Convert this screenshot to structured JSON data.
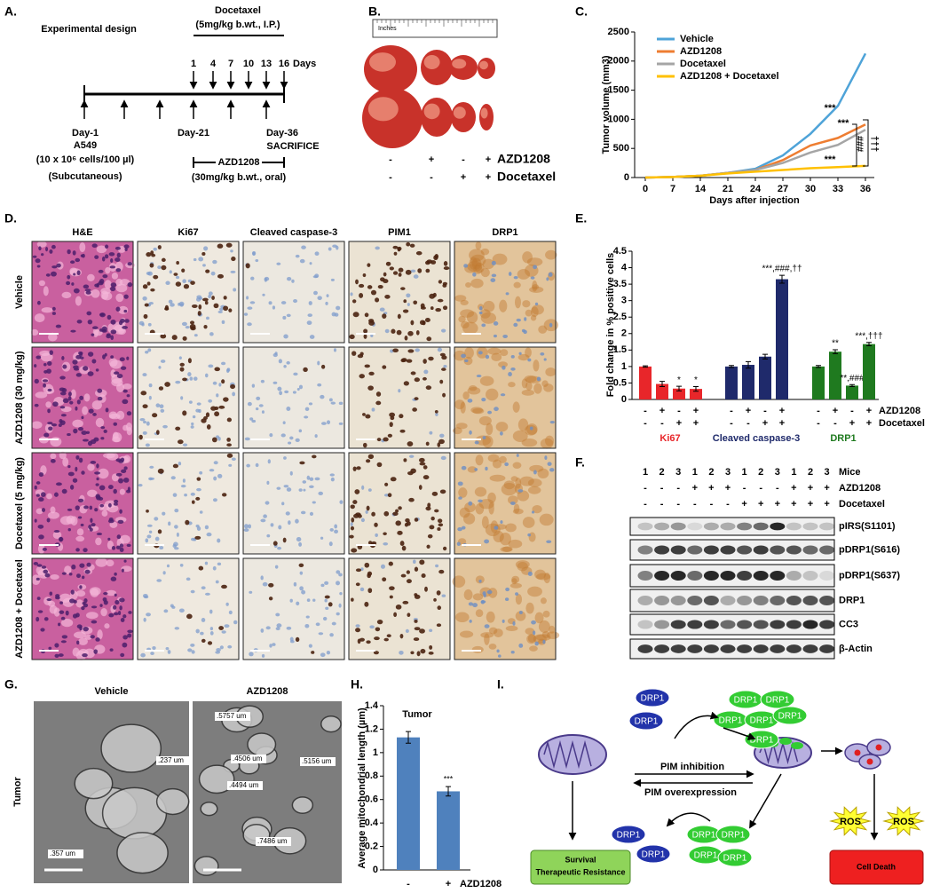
{
  "panel_labels": [
    "A.",
    "B.",
    "C.",
    "D.",
    "E.",
    "F.",
    "G.",
    "H.",
    "I."
  ],
  "design": {
    "title": "Experimental design",
    "drug": "Docetaxel",
    "drug_dose": "(5mg/kg b.wt., I.P.)",
    "days": [
      "1",
      "4",
      "7",
      "10",
      "13",
      "16"
    ],
    "days_unit": "Days",
    "day1": "Day-1",
    "cell_line": "A549",
    "cells": "(10 x 10⁶ cells/100 µl)",
    "route": "(Subcutaneous)",
    "day21": "Day-21",
    "day36": "Day-36",
    "sacrifice": "SACRIFICE",
    "inhibitor": "AZD1208",
    "inhibitor_dose": "(30mg/kg b.wt., oral)"
  },
  "tumors": {
    "ruler": "Inches",
    "azd_signs": [
      "-",
      "+",
      "-",
      "+"
    ],
    "doc_signs": [
      "-",
      "-",
      "+",
      "+"
    ],
    "azd_label": "AZD1208",
    "doc_label": "Docetaxel"
  },
  "chart_data": [
    {
      "type": "line",
      "xlabel": "Days after injection",
      "ylabel": "Tumor volume (mm3)",
      "categories": [
        "0",
        "7",
        "14",
        "21",
        "24",
        "27",
        "30",
        "33",
        "36"
      ],
      "ylim": [
        0,
        2500
      ],
      "yticks": [
        0,
        500,
        1000,
        1500,
        2000,
        2500
      ],
      "legend": "upper left",
      "series": [
        {
          "name": "Vehicle",
          "color": "#4ea3d8",
          "values": [
            0,
            10,
            30,
            80,
            150,
            380,
            750,
            1230,
            2130
          ]
        },
        {
          "name": "AZD1208",
          "color": "#ee7d31",
          "values": [
            0,
            10,
            30,
            80,
            130,
            300,
            550,
            680,
            910
          ]
        },
        {
          "name": "Docetaxel",
          "color": "#a5a5a5",
          "values": [
            0,
            10,
            30,
            80,
            130,
            250,
            430,
            560,
            820
          ]
        },
        {
          "name": "AZD1208 + Docetaxel",
          "color": "#ffc000",
          "values": [
            0,
            10,
            30,
            70,
            100,
            130,
            160,
            180,
            200
          ]
        }
      ],
      "annotations": [
        "***",
        "***",
        "***",
        "###",
        "†††"
      ]
    },
    {
      "type": "bar",
      "ylabel": "Fold change in % positive cells",
      "ylim": [
        0,
        4.5
      ],
      "yticks": [
        0,
        0.5,
        1,
        1.5,
        2,
        2.5,
        3,
        3.5,
        4,
        4.5
      ],
      "azd_signs": [
        "-",
        "+",
        "-",
        "+"
      ],
      "doc_signs": [
        "-",
        "-",
        "+",
        "+"
      ],
      "azd_label": "AZD1208",
      "doc_label": "Docetaxel",
      "groups": [
        {
          "name": "Ki67",
          "color": "#e8262a",
          "values": [
            1,
            0.47,
            0.33,
            0.32
          ],
          "errors": [
            0.02,
            0.08,
            0.07,
            0.07
          ],
          "annotations": [
            null,
            null,
            "*",
            "*"
          ]
        },
        {
          "name": "Cleaved caspase-3",
          "color": "#1f2a6b",
          "values": [
            1,
            1.05,
            1.3,
            3.65
          ],
          "errors": [
            0.03,
            0.1,
            0.07,
            0.12
          ],
          "annotations": [
            null,
            null,
            null,
            "***,###,††"
          ]
        },
        {
          "name": "DRP1",
          "color": "#1f7a1f",
          "values": [
            1,
            1.45,
            0.42,
            1.68
          ],
          "errors": [
            0.03,
            0.06,
            0.03,
            0.05
          ],
          "annotations": [
            null,
            "**",
            "**,###",
            "***,†††"
          ]
        }
      ]
    },
    {
      "type": "bar",
      "title": "Tumor",
      "ylabel": "Average mitochondrial length (µm)",
      "xlabel": "AZD1208",
      "categories": [
        "-",
        "+"
      ],
      "values": [
        1.13,
        0.67
      ],
      "errors": [
        0.05,
        0.04
      ],
      "annotations": [
        null,
        "***"
      ],
      "color": "#4f81bd",
      "ylim": [
        0,
        1.4
      ],
      "yticks": [
        0,
        0.2,
        0.4,
        0.6,
        0.8,
        1,
        1.2,
        1.4
      ]
    }
  ],
  "ihc": {
    "columns": [
      "H&E",
      "Ki67",
      "Cleaved caspase-3",
      "PIM1",
      "DRP1"
    ],
    "rows": [
      "Vehicle",
      "AZD1208 (30 mg/kg)",
      "Docetaxel (5 mg/kg)",
      "AZD1208 + Docetaxel"
    ]
  },
  "western": {
    "mice_label": "Mice",
    "mice": [
      "1",
      "2",
      "3",
      "1",
      "2",
      "3",
      "1",
      "2",
      "3",
      "1",
      "2",
      "3"
    ],
    "azd_label": "AZD1208",
    "azd_signs": [
      "-",
      "-",
      "-",
      "+",
      "+",
      "+",
      "-",
      "-",
      "-",
      "+",
      "+",
      "+"
    ],
    "doc_label": "Docetaxel",
    "doc_signs": [
      "-",
      "-",
      "-",
      "-",
      "-",
      "-",
      "+",
      "+",
      "+",
      "+",
      "+",
      "+"
    ],
    "proteins": [
      "pIRS(S1101)",
      "pDRP1(S616)",
      "pDRP1(S637)",
      "DRP1",
      "CC3",
      "β-Actin"
    ]
  },
  "em": {
    "conditions": [
      "Vehicle",
      "AZD1208"
    ],
    "tissue": "Tumor",
    "measurements": [
      [
        ".237 um",
        ".357 um"
      ],
      [
        ".5757 um",
        ".4506 um",
        ".5156 um",
        ".4494 um",
        ".7486 um"
      ]
    ]
  },
  "model": {
    "protein": "DRP1",
    "inhibition": "PIM inhibition",
    "overexpression": "PIM overexpression",
    "ros": "ROS",
    "survival": [
      "Survival",
      "Therapeutic Resistance"
    ],
    "death": "Cell Death"
  }
}
